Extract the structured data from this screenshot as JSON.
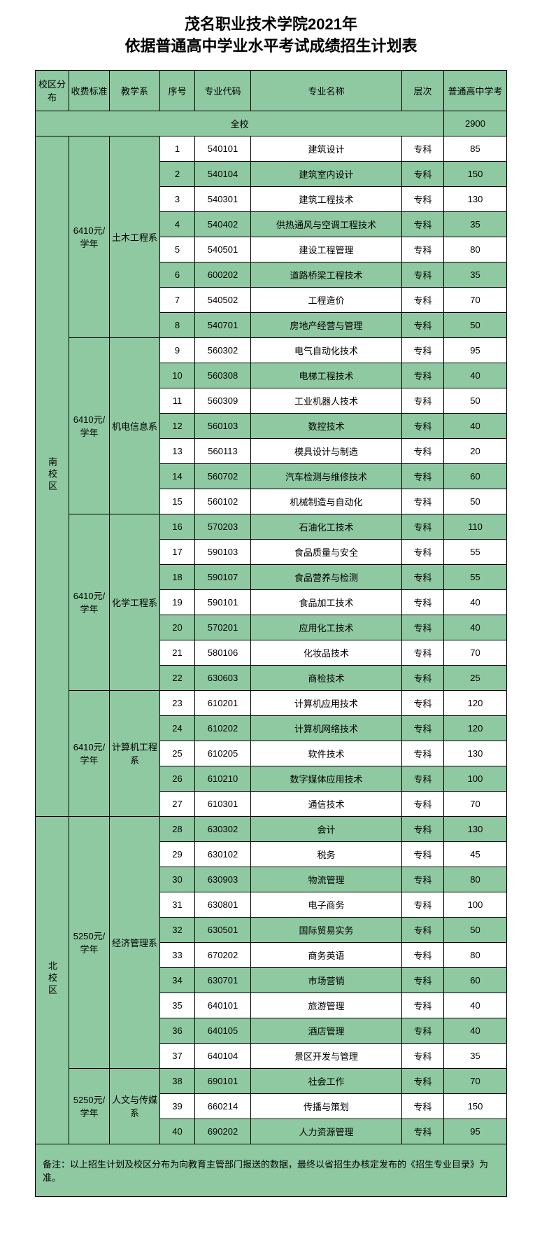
{
  "title_line1": "茂名职业技术学院2021年",
  "title_line2": "依据普通高中学业水平考试成绩招生计划表",
  "headers": {
    "campus": "校区分布",
    "fee": "收费标准",
    "dept": "教学系",
    "idx": "序号",
    "code": "专业代码",
    "name": "专业名称",
    "level": "层次",
    "quota": "普通高中学考"
  },
  "summary": {
    "label": "全校",
    "total": "2900"
  },
  "campuses": [
    {
      "name": "南校区",
      "rowcount": 27,
      "fees": [
        {
          "fee": "6410元/学年",
          "dept": "土木工程系",
          "rowcount": 8
        },
        {
          "fee": "6410元/学年",
          "dept": "机电信息系",
          "rowcount": 7
        },
        {
          "fee": "6410元/学年",
          "dept": "化学工程系",
          "rowcount": 7
        },
        {
          "fee": "6410元/学年",
          "dept": "计算机工程系",
          "rowcount": 5
        }
      ]
    },
    {
      "name": "北校区",
      "rowcount": 13,
      "fees": [
        {
          "fee": "5250元/学年",
          "dept": "经济管理系",
          "rowcount": 10
        },
        {
          "fee": "5250元/学年",
          "dept": "人文与传媒系",
          "rowcount": 3
        }
      ]
    }
  ],
  "rows": [
    {
      "idx": "1",
      "code": "540101",
      "name": "建筑设计",
      "level": "专科",
      "quota": "85"
    },
    {
      "idx": "2",
      "code": "540104",
      "name": "建筑室内设计",
      "level": "专科",
      "quota": "150"
    },
    {
      "idx": "3",
      "code": "540301",
      "name": "建筑工程技术",
      "level": "专科",
      "quota": "130"
    },
    {
      "idx": "4",
      "code": "540402",
      "name": "供热通风与空调工程技术",
      "level": "专科",
      "quota": "35"
    },
    {
      "idx": "5",
      "code": "540501",
      "name": "建设工程管理",
      "level": "专科",
      "quota": "80"
    },
    {
      "idx": "6",
      "code": "600202",
      "name": "道路桥梁工程技术",
      "level": "专科",
      "quota": "35"
    },
    {
      "idx": "7",
      "code": "540502",
      "name": "工程造价",
      "level": "专科",
      "quota": "70"
    },
    {
      "idx": "8",
      "code": "540701",
      "name": "房地产经营与管理",
      "level": "专科",
      "quota": "50"
    },
    {
      "idx": "9",
      "code": "560302",
      "name": "电气自动化技术",
      "level": "专科",
      "quota": "95"
    },
    {
      "idx": "10",
      "code": "560308",
      "name": "电梯工程技术",
      "level": "专科",
      "quota": "40"
    },
    {
      "idx": "11",
      "code": "560309",
      "name": "工业机器人技术",
      "level": "专科",
      "quota": "50"
    },
    {
      "idx": "12",
      "code": "560103",
      "name": "数控技术",
      "level": "专科",
      "quota": "40"
    },
    {
      "idx": "13",
      "code": "560113",
      "name": "模具设计与制造",
      "level": "专科",
      "quota": "20"
    },
    {
      "idx": "14",
      "code": "560702",
      "name": "汽车检测与维修技术",
      "level": "专科",
      "quota": "60"
    },
    {
      "idx": "15",
      "code": "560102",
      "name": "机械制造与自动化",
      "level": "专科",
      "quota": "50"
    },
    {
      "idx": "16",
      "code": "570203",
      "name": "石油化工技术",
      "level": "专科",
      "quota": "110"
    },
    {
      "idx": "17",
      "code": "590103",
      "name": "食品质量与安全",
      "level": "专科",
      "quota": "55"
    },
    {
      "idx": "18",
      "code": "590107",
      "name": "食品营养与检测",
      "level": "专科",
      "quota": "55"
    },
    {
      "idx": "19",
      "code": "590101",
      "name": "食品加工技术",
      "level": "专科",
      "quota": "40"
    },
    {
      "idx": "20",
      "code": "570201",
      "name": "应用化工技术",
      "level": "专科",
      "quota": "40"
    },
    {
      "idx": "21",
      "code": "580106",
      "name": "化妆品技术",
      "level": "专科",
      "quota": "70"
    },
    {
      "idx": "22",
      "code": "630603",
      "name": "商检技术",
      "level": "专科",
      "quota": "25"
    },
    {
      "idx": "23",
      "code": "610201",
      "name": "计算机应用技术",
      "level": "专科",
      "quota": "120"
    },
    {
      "idx": "24",
      "code": "610202",
      "name": "计算机网络技术",
      "level": "专科",
      "quota": "120"
    },
    {
      "idx": "25",
      "code": "610205",
      "name": "软件技术",
      "level": "专科",
      "quota": "130"
    },
    {
      "idx": "26",
      "code": "610210",
      "name": "数字媒体应用技术",
      "level": "专科",
      "quota": "100"
    },
    {
      "idx": "27",
      "code": "610301",
      "name": "通信技术",
      "level": "专科",
      "quota": "70"
    },
    {
      "idx": "28",
      "code": "630302",
      "name": "会计",
      "level": "专科",
      "quota": "130"
    },
    {
      "idx": "29",
      "code": "630102",
      "name": "税务",
      "level": "专科",
      "quota": "45"
    },
    {
      "idx": "30",
      "code": "630903",
      "name": "物流管理",
      "level": "专科",
      "quota": "80"
    },
    {
      "idx": "31",
      "code": "630801",
      "name": "电子商务",
      "level": "专科",
      "quota": "100"
    },
    {
      "idx": "32",
      "code": "630501",
      "name": "国际贸易实务",
      "level": "专科",
      "quota": "50"
    },
    {
      "idx": "33",
      "code": "670202",
      "name": "商务英语",
      "level": "专科",
      "quota": "80"
    },
    {
      "idx": "34",
      "code": "630701",
      "name": "市场营销",
      "level": "专科",
      "quota": "60"
    },
    {
      "idx": "35",
      "code": "640101",
      "name": "旅游管理",
      "level": "专科",
      "quota": "40"
    },
    {
      "idx": "36",
      "code": "640105",
      "name": "酒店管理",
      "level": "专科",
      "quota": "40"
    },
    {
      "idx": "37",
      "code": "640104",
      "name": "景区开发与管理",
      "level": "专科",
      "quota": "35"
    },
    {
      "idx": "38",
      "code": "690101",
      "name": "社会工作",
      "level": "专科",
      "quota": "70"
    },
    {
      "idx": "39",
      "code": "660214",
      "name": "传播与策划",
      "level": "专科",
      "quota": "150"
    },
    {
      "idx": "40",
      "code": "690202",
      "name": "人力资源管理",
      "level": "专科",
      "quota": "95"
    }
  ],
  "footer": "备注：以上招生计划及校区分布为向教育主管部门报送的数据，最终以省招生办核定发布的《招生专业目录》为准。",
  "colors": {
    "header_bg": "#8fc9a1",
    "stripe_bg": "#8fc9a1",
    "plain_bg": "#ffffff",
    "border": "#000000"
  }
}
